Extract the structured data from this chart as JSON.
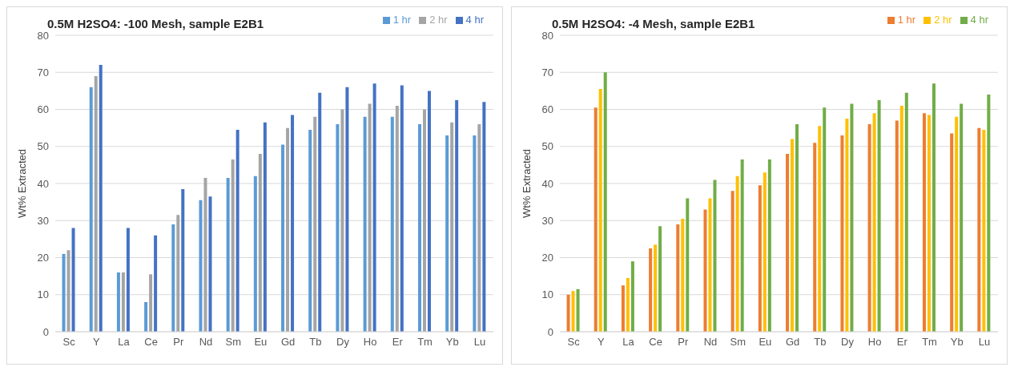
{
  "chart_data": [
    {
      "type": "bar",
      "title": "0.5M H2SO4: -100 Mesh, sample E2B1",
      "ylabel": "Wt% Extracted",
      "categories": [
        "Sc",
        "Y",
        "La",
        "Ce",
        "Pr",
        "Nd",
        "Sm",
        "Eu",
        "Gd",
        "Tb",
        "Dy",
        "Ho",
        "Er",
        "Tm",
        "Yb",
        "Lu"
      ],
      "ylim": [
        0,
        80
      ],
      "yticks": [
        0,
        10,
        20,
        30,
        40,
        50,
        60,
        70,
        80
      ],
      "grid": "y",
      "legend": "top right",
      "series": [
        {
          "name": "1 hr",
          "color": "#5b9bd5",
          "values": [
            21,
            66,
            16,
            8,
            29,
            35.5,
            41.5,
            42,
            50.5,
            54.5,
            56,
            58,
            58,
            56,
            53,
            53
          ]
        },
        {
          "name": "2 hr",
          "color": "#a5a5a5",
          "values": [
            22,
            69,
            16,
            15.5,
            31.5,
            41.5,
            46.5,
            48,
            55,
            58,
            60,
            61.5,
            61,
            60,
            56.5,
            56
          ]
        },
        {
          "name": "4 hr",
          "color": "#4472c4",
          "values": [
            28,
            72,
            28,
            26,
            38.5,
            36.5,
            54.5,
            56.5,
            58.5,
            64.5,
            66,
            67,
            66.5,
            65,
            62.5,
            62
          ]
        }
      ]
    },
    {
      "type": "bar",
      "title": "0.5M H2SO4: -4 Mesh, sample E2B1",
      "ylabel": "Wt% Extracted",
      "categories": [
        "Sc",
        "Y",
        "La",
        "Ce",
        "Pr",
        "Nd",
        "Sm",
        "Eu",
        "Gd",
        "Tb",
        "Dy",
        "Ho",
        "Er",
        "Tm",
        "Yb",
        "Lu"
      ],
      "ylim": [
        0,
        80
      ],
      "yticks": [
        0,
        10,
        20,
        30,
        40,
        50,
        60,
        70,
        80
      ],
      "grid": "y",
      "legend": "top right",
      "series": [
        {
          "name": "1 hr",
          "color": "#ed7d31",
          "values": [
            10,
            60.5,
            12.5,
            22.5,
            29,
            33,
            38,
            39.5,
            48,
            51,
            53,
            56,
            57,
            59,
            53.5,
            55
          ]
        },
        {
          "name": "2 hr",
          "color": "#ffc000",
          "values": [
            11,
            65.5,
            14.5,
            23.5,
            30.5,
            36,
            42,
            43,
            52,
            55.5,
            57.5,
            59,
            61,
            58.5,
            58,
            54.5
          ]
        },
        {
          "name": "4 hr",
          "color": "#70ad47",
          "values": [
            11.5,
            70,
            19,
            28.5,
            36,
            41,
            46.5,
            46.5,
            56,
            60.5,
            61.5,
            62.5,
            64.5,
            67,
            61.5,
            64
          ]
        }
      ]
    }
  ]
}
